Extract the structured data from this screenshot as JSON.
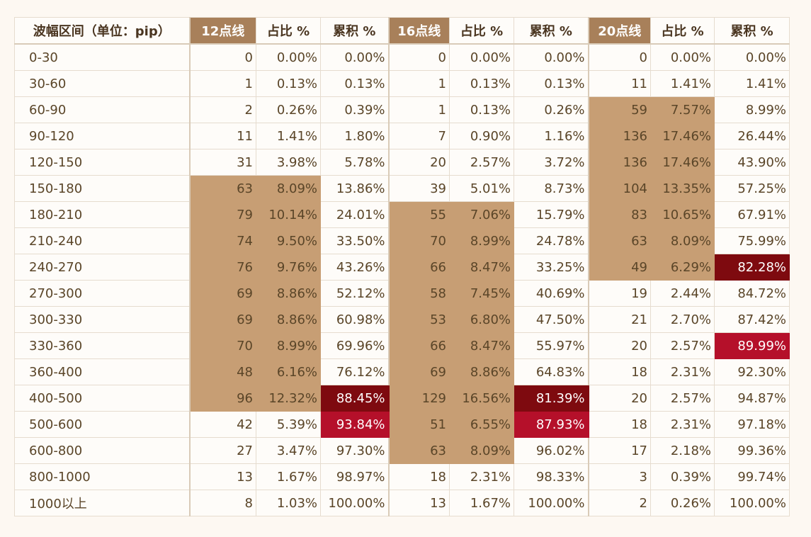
{
  "table": {
    "headers": [
      "波幅区间（单位：pip）",
      "12点线",
      "占比 %",
      "累积 %",
      "16点线",
      "占比 %",
      "累积 %",
      "20点线",
      "占比 %",
      "累积 %"
    ],
    "rows": [
      [
        "0-30",
        "0",
        "0.00%",
        "0.00%",
        "0",
        "0.00%",
        "0.00%",
        "0",
        "0.00%",
        "0.00%"
      ],
      [
        "30-60",
        "1",
        "0.13%",
        "0.13%",
        "1",
        "0.13%",
        "0.13%",
        "11",
        "1.41%",
        "1.41%"
      ],
      [
        "60-90",
        "2",
        "0.26%",
        "0.39%",
        "1",
        "0.13%",
        "0.26%",
        "59",
        "7.57%",
        "8.99%"
      ],
      [
        "90-120",
        "11",
        "1.41%",
        "1.80%",
        "7",
        "0.90%",
        "1.16%",
        "136",
        "17.46%",
        "26.44%"
      ],
      [
        "120-150",
        "31",
        "3.98%",
        "5.78%",
        "20",
        "2.57%",
        "3.72%",
        "136",
        "17.46%",
        "43.90%"
      ],
      [
        "150-180",
        "63",
        "8.09%",
        "13.86%",
        "39",
        "5.01%",
        "8.73%",
        "104",
        "13.35%",
        "57.25%"
      ],
      [
        "180-210",
        "79",
        "10.14%",
        "24.01%",
        "55",
        "7.06%",
        "15.79%",
        "83",
        "10.65%",
        "67.91%"
      ],
      [
        "210-240",
        "74",
        "9.50%",
        "33.50%",
        "70",
        "8.99%",
        "24.78%",
        "63",
        "8.09%",
        "75.99%"
      ],
      [
        "240-270",
        "76",
        "9.76%",
        "43.26%",
        "66",
        "8.47%",
        "33.25%",
        "49",
        "6.29%",
        "82.28%"
      ],
      [
        "270-300",
        "69",
        "8.86%",
        "52.12%",
        "58",
        "7.45%",
        "40.69%",
        "19",
        "2.44%",
        "84.72%"
      ],
      [
        "300-330",
        "69",
        "8.86%",
        "60.98%",
        "53",
        "6.80%",
        "47.50%",
        "21",
        "2.70%",
        "87.42%"
      ],
      [
        "330-360",
        "70",
        "8.99%",
        "69.96%",
        "66",
        "8.47%",
        "55.97%",
        "20",
        "2.57%",
        "89.99%"
      ],
      [
        "360-400",
        "48",
        "6.16%",
        "76.12%",
        "69",
        "8.86%",
        "64.83%",
        "18",
        "2.31%",
        "92.30%"
      ],
      [
        "400-500",
        "96",
        "12.32%",
        "88.45%",
        "129",
        "16.56%",
        "81.39%",
        "20",
        "2.57%",
        "94.87%"
      ],
      [
        "500-600",
        "42",
        "5.39%",
        "93.84%",
        "51",
        "6.55%",
        "87.93%",
        "18",
        "2.31%",
        "97.18%"
      ],
      [
        "600-800",
        "27",
        "3.47%",
        "97.30%",
        "63",
        "8.09%",
        "96.02%",
        "17",
        "2.18%",
        "99.36%"
      ],
      [
        "800-1000",
        "13",
        "1.67%",
        "98.97%",
        "18",
        "2.31%",
        "98.33%",
        "3",
        "0.39%",
        "99.74%"
      ],
      [
        "1000以上",
        "8",
        "1.03%",
        "100.00%",
        "13",
        "1.67%",
        "100.00%",
        "2",
        "0.26%",
        "100.00%"
      ]
    ],
    "highlighted_header_columns": [
      1,
      4,
      7
    ],
    "cell_styles": {
      "tan": [
        [
          5,
          1
        ],
        [
          5,
          2
        ],
        [
          6,
          1
        ],
        [
          6,
          2
        ],
        [
          7,
          1
        ],
        [
          7,
          2
        ],
        [
          8,
          1
        ],
        [
          8,
          2
        ],
        [
          9,
          1
        ],
        [
          9,
          2
        ],
        [
          10,
          1
        ],
        [
          10,
          2
        ],
        [
          11,
          1
        ],
        [
          11,
          2
        ],
        [
          12,
          1
        ],
        [
          12,
          2
        ],
        [
          13,
          1
        ],
        [
          13,
          2
        ],
        [
          6,
          4
        ],
        [
          6,
          5
        ],
        [
          7,
          4
        ],
        [
          7,
          5
        ],
        [
          8,
          4
        ],
        [
          8,
          5
        ],
        [
          9,
          4
        ],
        [
          9,
          5
        ],
        [
          10,
          4
        ],
        [
          10,
          5
        ],
        [
          11,
          4
        ],
        [
          11,
          5
        ],
        [
          12,
          4
        ],
        [
          12,
          5
        ],
        [
          13,
          4
        ],
        [
          13,
          5
        ],
        [
          14,
          4
        ],
        [
          14,
          5
        ],
        [
          15,
          4
        ],
        [
          15,
          5
        ],
        [
          2,
          7
        ],
        [
          2,
          8
        ],
        [
          3,
          7
        ],
        [
          3,
          8
        ],
        [
          4,
          7
        ],
        [
          4,
          8
        ],
        [
          5,
          7
        ],
        [
          5,
          8
        ],
        [
          6,
          7
        ],
        [
          6,
          8
        ],
        [
          7,
          7
        ],
        [
          7,
          8
        ],
        [
          8,
          7
        ],
        [
          8,
          8
        ]
      ],
      "dark_red": [
        [
          13,
          3
        ],
        [
          13,
          6
        ],
        [
          8,
          9
        ]
      ],
      "red": [
        [
          14,
          3
        ],
        [
          14,
          6
        ],
        [
          11,
          9
        ]
      ]
    },
    "colors": {
      "header_highlight": "#a8805a",
      "tan": "#c79e74",
      "dark_red": "#7e0a0f",
      "red": "#b5102a",
      "text": "#5a4528",
      "background": "#fdf8f2"
    }
  }
}
